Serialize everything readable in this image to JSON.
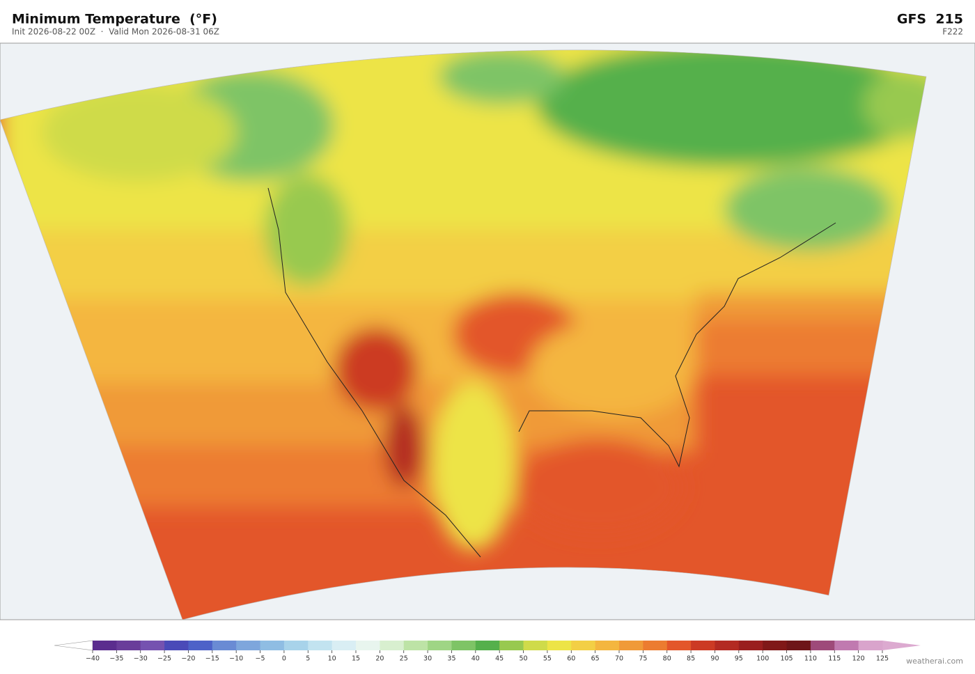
{
  "header": {
    "title": "Minimum Temperature  (°F)",
    "subtitle": "Init 2026-08-22 00Z  ·  Valid Mon 2026-08-31 06Z",
    "model": "GFS  215",
    "forecast_hour": "F222"
  },
  "colorbar": {
    "ticks": [
      {
        "value": -40,
        "label": "−40"
      },
      {
        "value": -35,
        "label": "−35"
      },
      {
        "value": -30,
        "label": "−30"
      },
      {
        "value": -25,
        "label": "−25"
      },
      {
        "value": -20,
        "label": "−20"
      },
      {
        "value": -15,
        "label": "−15"
      },
      {
        "value": -10,
        "label": "−10"
      },
      {
        "value": -5,
        "label": "−5"
      },
      0,
      5,
      10,
      15,
      20,
      25,
      30,
      35,
      40,
      45,
      50,
      55,
      60,
      65,
      70,
      75,
      80,
      85,
      90,
      95,
      100,
      105,
      110,
      115,
      120,
      125
    ],
    "colors": [
      "#5b2d8e",
      "#6a3d9a",
      "#7552b0",
      "#4a4ab8",
      "#4d62c8",
      "#6a8bd4",
      "#7ea6dc",
      "#8fbde3",
      "#a8d3ea",
      "#c2e3f0",
      "#d9eef4",
      "#e8f5ee",
      "#d8efcf",
      "#bde3a6",
      "#9fd585",
      "#7ec466",
      "#55b04c",
      "#98c94f",
      "#cfdb4a",
      "#ede447",
      "#f3cf45",
      "#f4b63f",
      "#f09a38",
      "#ec7c30",
      "#e3562a",
      "#cc3a24",
      "#b32a22",
      "#9a1e1e",
      "#801818",
      "#6e1518",
      "#9e4a7a",
      "#c07ab0",
      "#d9a4cc"
    ],
    "over_color": "#dcaad0",
    "under_color": "#ffffff"
  },
  "watermark": "weatherai.com"
}
